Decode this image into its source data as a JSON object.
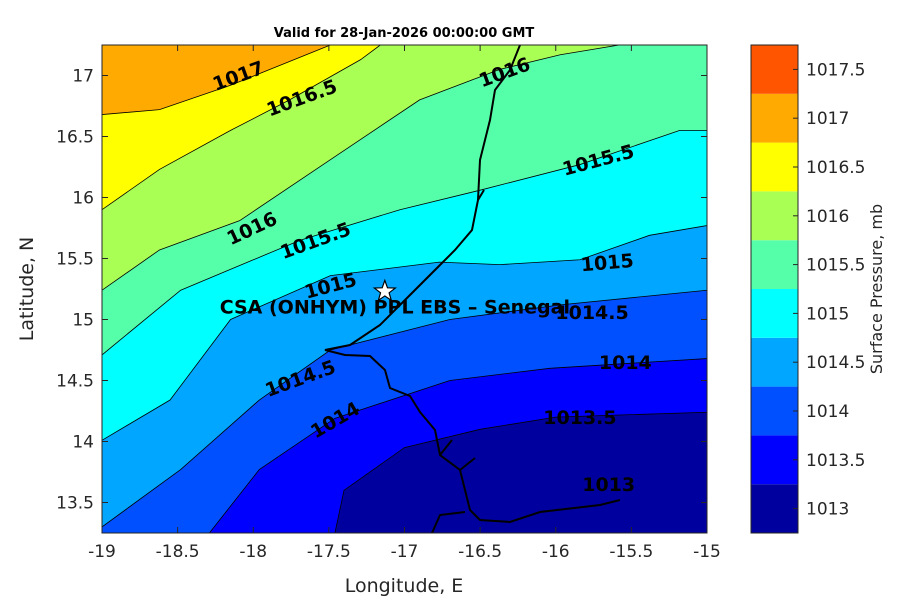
{
  "chart_data": {
    "type": "contour",
    "title": "Valid for 28-Jan-2026 00:00:00 GMT",
    "xlabel": "Longitude, E",
    "ylabel": "Latitude, N",
    "xlim": [
      -19,
      -15
    ],
    "ylim": [
      13.25,
      17.25
    ],
    "xticks": [
      -19,
      -18.5,
      -18,
      -17.5,
      -17,
      -16.5,
      -16,
      -15.5,
      -15
    ],
    "xtick_labels": [
      "-19",
      "-18.5",
      "-18",
      "-17.5",
      "-17",
      "-16.5",
      "-16",
      "-15.5",
      "-15"
    ],
    "yticks": [
      13.5,
      14,
      14.5,
      15,
      15.5,
      16,
      16.5,
      17
    ],
    "ytick_labels": [
      "13.5",
      "14",
      "14.5",
      "15",
      "15.5",
      "16",
      "16.5",
      "17"
    ],
    "colorbar": {
      "label": "Surface Pressure, mb",
      "levels": [
        "1013",
        "1013.5",
        "1014",
        "1014.5",
        "1015",
        "1015.5",
        "1016",
        "1016.5",
        "1017",
        "1017.5"
      ],
      "colors": [
        "#00009f",
        "#0000ff",
        "#0050ff",
        "#00a6ff",
        "#00ffff",
        "#55ffaa",
        "#aaff55",
        "#ffff00",
        "#ffaa00",
        "#ff5500"
      ]
    },
    "contours": [
      {
        "level": 1013.5,
        "points": [
          [
            -17.46,
            13.25
          ],
          [
            -17.4,
            13.6
          ],
          [
            -17.0,
            13.95
          ],
          [
            -16.5,
            14.1
          ],
          [
            -16.0,
            14.2
          ],
          [
            -15.5,
            14.22
          ],
          [
            -15,
            14.24
          ]
        ]
      },
      {
        "level": 1014,
        "points": [
          [
            -18.29,
            13.25
          ],
          [
            -17.96,
            13.77
          ],
          [
            -17.46,
            14.19
          ],
          [
            -16.7,
            14.5
          ],
          [
            -16.04,
            14.6
          ],
          [
            -15,
            14.68
          ]
        ]
      },
      {
        "level": 1014.5,
        "points": [
          [
            -19,
            13.3
          ],
          [
            -18.48,
            13.77
          ],
          [
            -17.96,
            14.34
          ],
          [
            -17.49,
            14.75
          ],
          [
            -16.7,
            15.0
          ],
          [
            -15.97,
            15.12
          ],
          [
            -15,
            15.24
          ]
        ]
      },
      {
        "level": 1015,
        "points": [
          [
            -19,
            14.01
          ],
          [
            -18.55,
            14.34
          ],
          [
            -18.15,
            15.0
          ],
          [
            -17.49,
            15.36
          ],
          [
            -16.77,
            15.47
          ],
          [
            -16.37,
            15.45
          ],
          [
            -15.84,
            15.49
          ],
          [
            -15.38,
            15.69
          ],
          [
            -15,
            15.77
          ]
        ]
      },
      {
        "level": 1015.5,
        "points": [
          [
            -19,
            14.71
          ],
          [
            -18.48,
            15.24
          ],
          [
            -17.69,
            15.65
          ],
          [
            -17.03,
            15.9
          ],
          [
            -16.5,
            16.06
          ],
          [
            -15.84,
            16.27
          ],
          [
            -15.18,
            16.55
          ],
          [
            -15,
            16.55
          ]
        ]
      },
      {
        "level": 1016,
        "points": [
          [
            -19,
            15.24
          ],
          [
            -18.62,
            15.57
          ],
          [
            -18.09,
            15.81
          ],
          [
            -17.49,
            16.31
          ],
          [
            -16.9,
            16.8
          ],
          [
            -16.37,
            17.05
          ],
          [
            -15.97,
            17.17
          ],
          [
            -15.58,
            17.25
          ]
        ]
      },
      {
        "level": 1016.5,
        "points": [
          [
            -19,
            15.9
          ],
          [
            -18.62,
            16.23
          ],
          [
            -18.15,
            16.55
          ],
          [
            -17.76,
            16.8
          ],
          [
            -17.29,
            17.13
          ],
          [
            -17.16,
            17.25
          ]
        ]
      },
      {
        "level": 1017,
        "points": [
          [
            -19,
            16.68
          ],
          [
            -18.62,
            16.72
          ],
          [
            -18.15,
            16.92
          ],
          [
            -17.49,
            17.25
          ]
        ]
      }
    ],
    "contour_labels": [
      {
        "text": "1017",
        "lon": -18.1,
        "lat": 17.0,
        "rot": -20
      },
      {
        "text": "1016.5",
        "lon": -17.68,
        "lat": 16.82,
        "rot": -20
      },
      {
        "text": "1016",
        "lon": -16.34,
        "lat": 17.03,
        "rot": -20
      },
      {
        "text": "1015.5",
        "lon": -15.72,
        "lat": 16.31,
        "rot": -15
      },
      {
        "text": "1016",
        "lon": -18.01,
        "lat": 15.75,
        "rot": -25
      },
      {
        "text": "1015.5",
        "lon": -17.59,
        "lat": 15.65,
        "rot": -20
      },
      {
        "text": "1015",
        "lon": -17.49,
        "lat": 15.28,
        "rot": -15
      },
      {
        "text": "1015",
        "lon": -15.66,
        "lat": 15.47,
        "rot": -5
      },
      {
        "text": "1014.5",
        "lon": -15.76,
        "lat": 15.06,
        "rot": 0
      },
      {
        "text": "1014.5",
        "lon": -17.69,
        "lat": 14.52,
        "rot": -20
      },
      {
        "text": "1014",
        "lon": -15.54,
        "lat": 14.65,
        "rot": 0
      },
      {
        "text": "1014",
        "lon": -17.46,
        "lat": 14.18,
        "rot": -30
      },
      {
        "text": "1013.5",
        "lon": -15.84,
        "lat": 14.2,
        "rot": 0
      },
      {
        "text": "1013",
        "lon": -15.65,
        "lat": 13.65,
        "rot": 0
      }
    ],
    "station": {
      "name": "CSA (ONHYM) PPL EBS  – Senegal",
      "lon": -17.13,
      "lat": 15.23
    }
  }
}
